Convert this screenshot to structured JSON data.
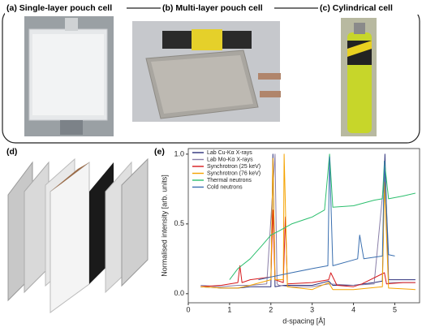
{
  "panels": {
    "a": "(a) Single-layer pouch cell",
    "b": "(b) Multi-layer pouch cell",
    "c": "(c) Cylindrical cell",
    "d": "(d)",
    "e": "(e)"
  },
  "chart_data": {
    "type": "line",
    "xlabel": "d-spacing [Å]",
    "ylabel": "Normalised intensity [arb. units]",
    "xlim": [
      0,
      5.6
    ],
    "ylim": [
      -0.065,
      1.04
    ],
    "xticks": [
      0,
      1,
      2,
      3,
      4,
      5
    ],
    "yticks": [
      {
        "value": 0,
        "label": "0.0"
      },
      {
        "value": 0.5,
        "label": "0.5"
      },
      {
        "value": 1,
        "label": "1.0"
      }
    ],
    "legend": "upper left",
    "series": [
      {
        "name": "Lab Cu-Kα X-rays",
        "color": "#2b2f7a",
        "x": [
          0.3,
          0.8,
          1.2,
          1.5,
          2.0,
          2.05,
          2.1,
          2.3,
          3.0,
          3.4,
          3.5,
          4.0,
          4.5,
          4.7,
          4.76,
          4.85,
          5.2,
          5.5
        ],
        "values": [
          0.05,
          0.04,
          0.04,
          0.05,
          0.05,
          1.0,
          0.05,
          0.06,
          0.06,
          0.09,
          0.06,
          0.06,
          0.08,
          0.09,
          1.0,
          0.1,
          0.1,
          0.1
        ]
      },
      {
        "name": "Lab Mo-Kα X-rays",
        "color": "#8a7fa8",
        "x": [
          0.3,
          0.8,
          1.2,
          1.5,
          1.9,
          2.1,
          2.15,
          2.2,
          2.5,
          3.0,
          3.4,
          4.0,
          4.5,
          4.75,
          4.85,
          5.5
        ],
        "values": [
          0.06,
          0.05,
          0.06,
          0.06,
          0.07,
          1.0,
          0.07,
          0.06,
          0.05,
          0.05,
          0.07,
          0.06,
          0.07,
          0.85,
          0.08,
          0.08
        ]
      },
      {
        "name": "Synchrotron (25 keV)",
        "color": "#d7191c",
        "x": [
          0.3,
          0.8,
          1.2,
          1.25,
          1.3,
          1.5,
          2.0,
          2.05,
          2.1,
          2.3,
          2.35,
          2.4,
          3.0,
          3.4,
          3.45,
          3.6,
          4.0,
          4.2,
          4.75,
          4.8,
          5.2,
          5.5
        ],
        "values": [
          0.05,
          0.06,
          0.08,
          0.2,
          0.08,
          0.1,
          0.12,
          0.6,
          0.1,
          0.08,
          0.55,
          0.07,
          0.08,
          0.1,
          0.15,
          0.06,
          0.05,
          0.07,
          0.15,
          0.07,
          0.08,
          0.08
        ]
      },
      {
        "name": "Synchrotron (76 keV)",
        "color": "#f5a300",
        "x": [
          0.3,
          0.8,
          1.2,
          1.5,
          2.0,
          2.05,
          2.1,
          2.3,
          2.32,
          2.4,
          3.0,
          3.4,
          3.5,
          4.0,
          4.7,
          4.75,
          4.85,
          5.5
        ],
        "values": [
          0.05,
          0.04,
          0.04,
          0.06,
          0.1,
          0.97,
          0.1,
          0.1,
          1.0,
          0.05,
          0.03,
          0.08,
          0.03,
          0.03,
          0.05,
          0.8,
          0.04,
          0.03
        ]
      },
      {
        "name": "Thermal neutrons",
        "color": "#2cbf6e",
        "x": [
          1.0,
          1.2,
          1.5,
          1.8,
          2.0,
          2.2,
          2.5,
          3.0,
          3.3,
          3.42,
          3.5,
          4.0,
          4.5,
          4.7,
          4.75,
          4.85,
          5.2,
          5.5
        ],
        "values": [
          0.1,
          0.18,
          0.25,
          0.35,
          0.42,
          0.45,
          0.5,
          0.55,
          0.6,
          1.0,
          0.62,
          0.63,
          0.67,
          0.68,
          0.95,
          0.68,
          0.7,
          0.72
        ]
      },
      {
        "name": "Cold neutrons",
        "color": "#3a6fb0",
        "x": [
          1.7,
          2.0,
          2.5,
          3.0,
          3.38,
          3.42,
          3.5,
          4.1,
          4.15,
          4.25,
          4.7,
          4.75,
          4.85,
          5.0
        ],
        "values": [
          0.1,
          0.12,
          0.15,
          0.18,
          0.2,
          0.98,
          0.2,
          0.25,
          0.42,
          0.25,
          0.27,
          0.95,
          0.28,
          0.27
        ]
      }
    ]
  }
}
